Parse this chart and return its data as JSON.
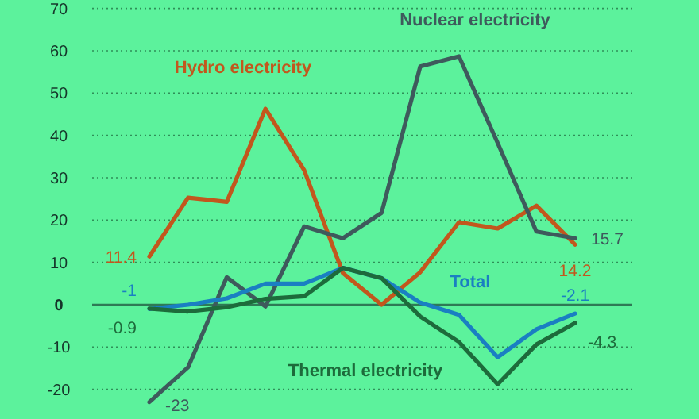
{
  "chart_data": {
    "type": "line",
    "categories": [
      null,
      null,
      null,
      null,
      null,
      null,
      null,
      null,
      null,
      null,
      null,
      null
    ],
    "series": [
      {
        "name": "Hydro electricity",
        "color": "#c2571d",
        "values": [
          11.4,
          25.3,
          24.3,
          46.3,
          31.8,
          7.5,
          0,
          7.7,
          19.5,
          18,
          23.4,
          14.2
        ],
        "value_labels": [
          "11.4",
          null,
          null,
          null,
          null,
          null,
          null,
          null,
          null,
          null,
          null,
          "14.2"
        ]
      },
      {
        "name": "Nuclear electricity",
        "color": "#3e5a5c",
        "values": [
          -23,
          -14.8,
          6.5,
          -0.4,
          18.5,
          15.7,
          21.7,
          56.3,
          58.7,
          38.2,
          17.3,
          15.7
        ],
        "value_labels": [
          "-23",
          null,
          null,
          null,
          null,
          null,
          null,
          null,
          null,
          null,
          null,
          "15.7"
        ]
      },
      {
        "name": "Total",
        "color": "#1a7fc2",
        "values": [
          -1,
          0,
          1.5,
          5,
          5,
          8.7,
          6.3,
          0.5,
          -2.4,
          -12.4,
          -5.8,
          -2.1
        ],
        "value_labels": [
          "-1",
          null,
          null,
          null,
          null,
          null,
          null,
          null,
          null,
          null,
          null,
          "-2.1"
        ]
      },
      {
        "name": "Thermal electricity",
        "color": "#1d6b3b",
        "values": [
          -0.9,
          -1.6,
          -0.6,
          1.4,
          2,
          8.7,
          6.3,
          -2.8,
          -8.8,
          -18.8,
          -9.4,
          -4.3
        ],
        "value_labels": [
          "-0.9",
          null,
          null,
          null,
          null,
          null,
          null,
          null,
          null,
          null,
          null,
          "-4.3"
        ]
      }
    ],
    "ylim": [
      -27,
      72
    ],
    "yticks": [
      -20,
      -10,
      0,
      10,
      20,
      30,
      40,
      50,
      60,
      70
    ],
    "ref_lines": [
      {
        "axis": "y",
        "value": 0,
        "color": "#2e7a55"
      }
    ],
    "grid": "y"
  }
}
